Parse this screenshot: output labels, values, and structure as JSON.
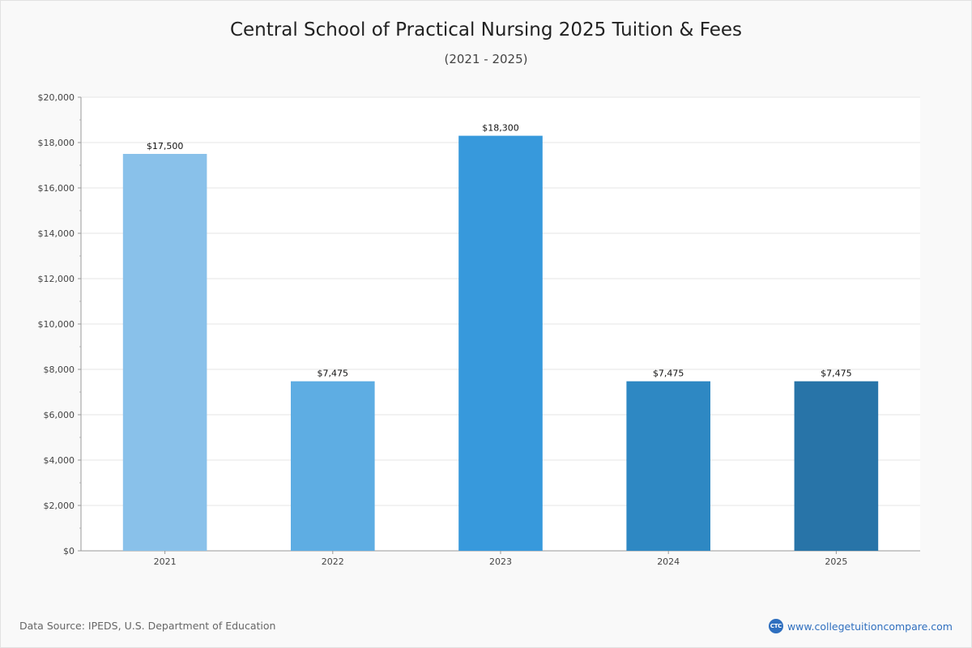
{
  "title": "Central School of Practical Nursing 2025 Tuition & Fees",
  "subtitle": "(2021 - 2025)",
  "footer": {
    "source": "Data Source: IPEDS, U.S. Department of Education",
    "brand_logo": "CTC",
    "brand_url": "www.collegetuitioncompare.com"
  },
  "chart_data": {
    "type": "bar",
    "categories": [
      "2021",
      "2022",
      "2023",
      "2024",
      "2025"
    ],
    "values": [
      17500,
      7475,
      18300,
      7475,
      7475
    ],
    "data_labels": [
      "$17,500",
      "$7,475",
      "$18,300",
      "$7,475",
      "$7,475"
    ],
    "bar_colors": [
      "#89c1ea",
      "#5eade3",
      "#3799dc",
      "#2e88c3",
      "#2874a8"
    ],
    "ylim": [
      0,
      20000
    ],
    "yticks": [
      0,
      2000,
      4000,
      6000,
      8000,
      10000,
      12000,
      14000,
      16000,
      18000,
      20000
    ],
    "ytick_labels": [
      "$0",
      "$2,000",
      "$4,000",
      "$6,000",
      "$8,000",
      "$10,000",
      "$12,000",
      "$14,000",
      "$16,000",
      "$18,000",
      "$20,000"
    ],
    "xlabel": "",
    "ylabel": "",
    "grid": true
  }
}
